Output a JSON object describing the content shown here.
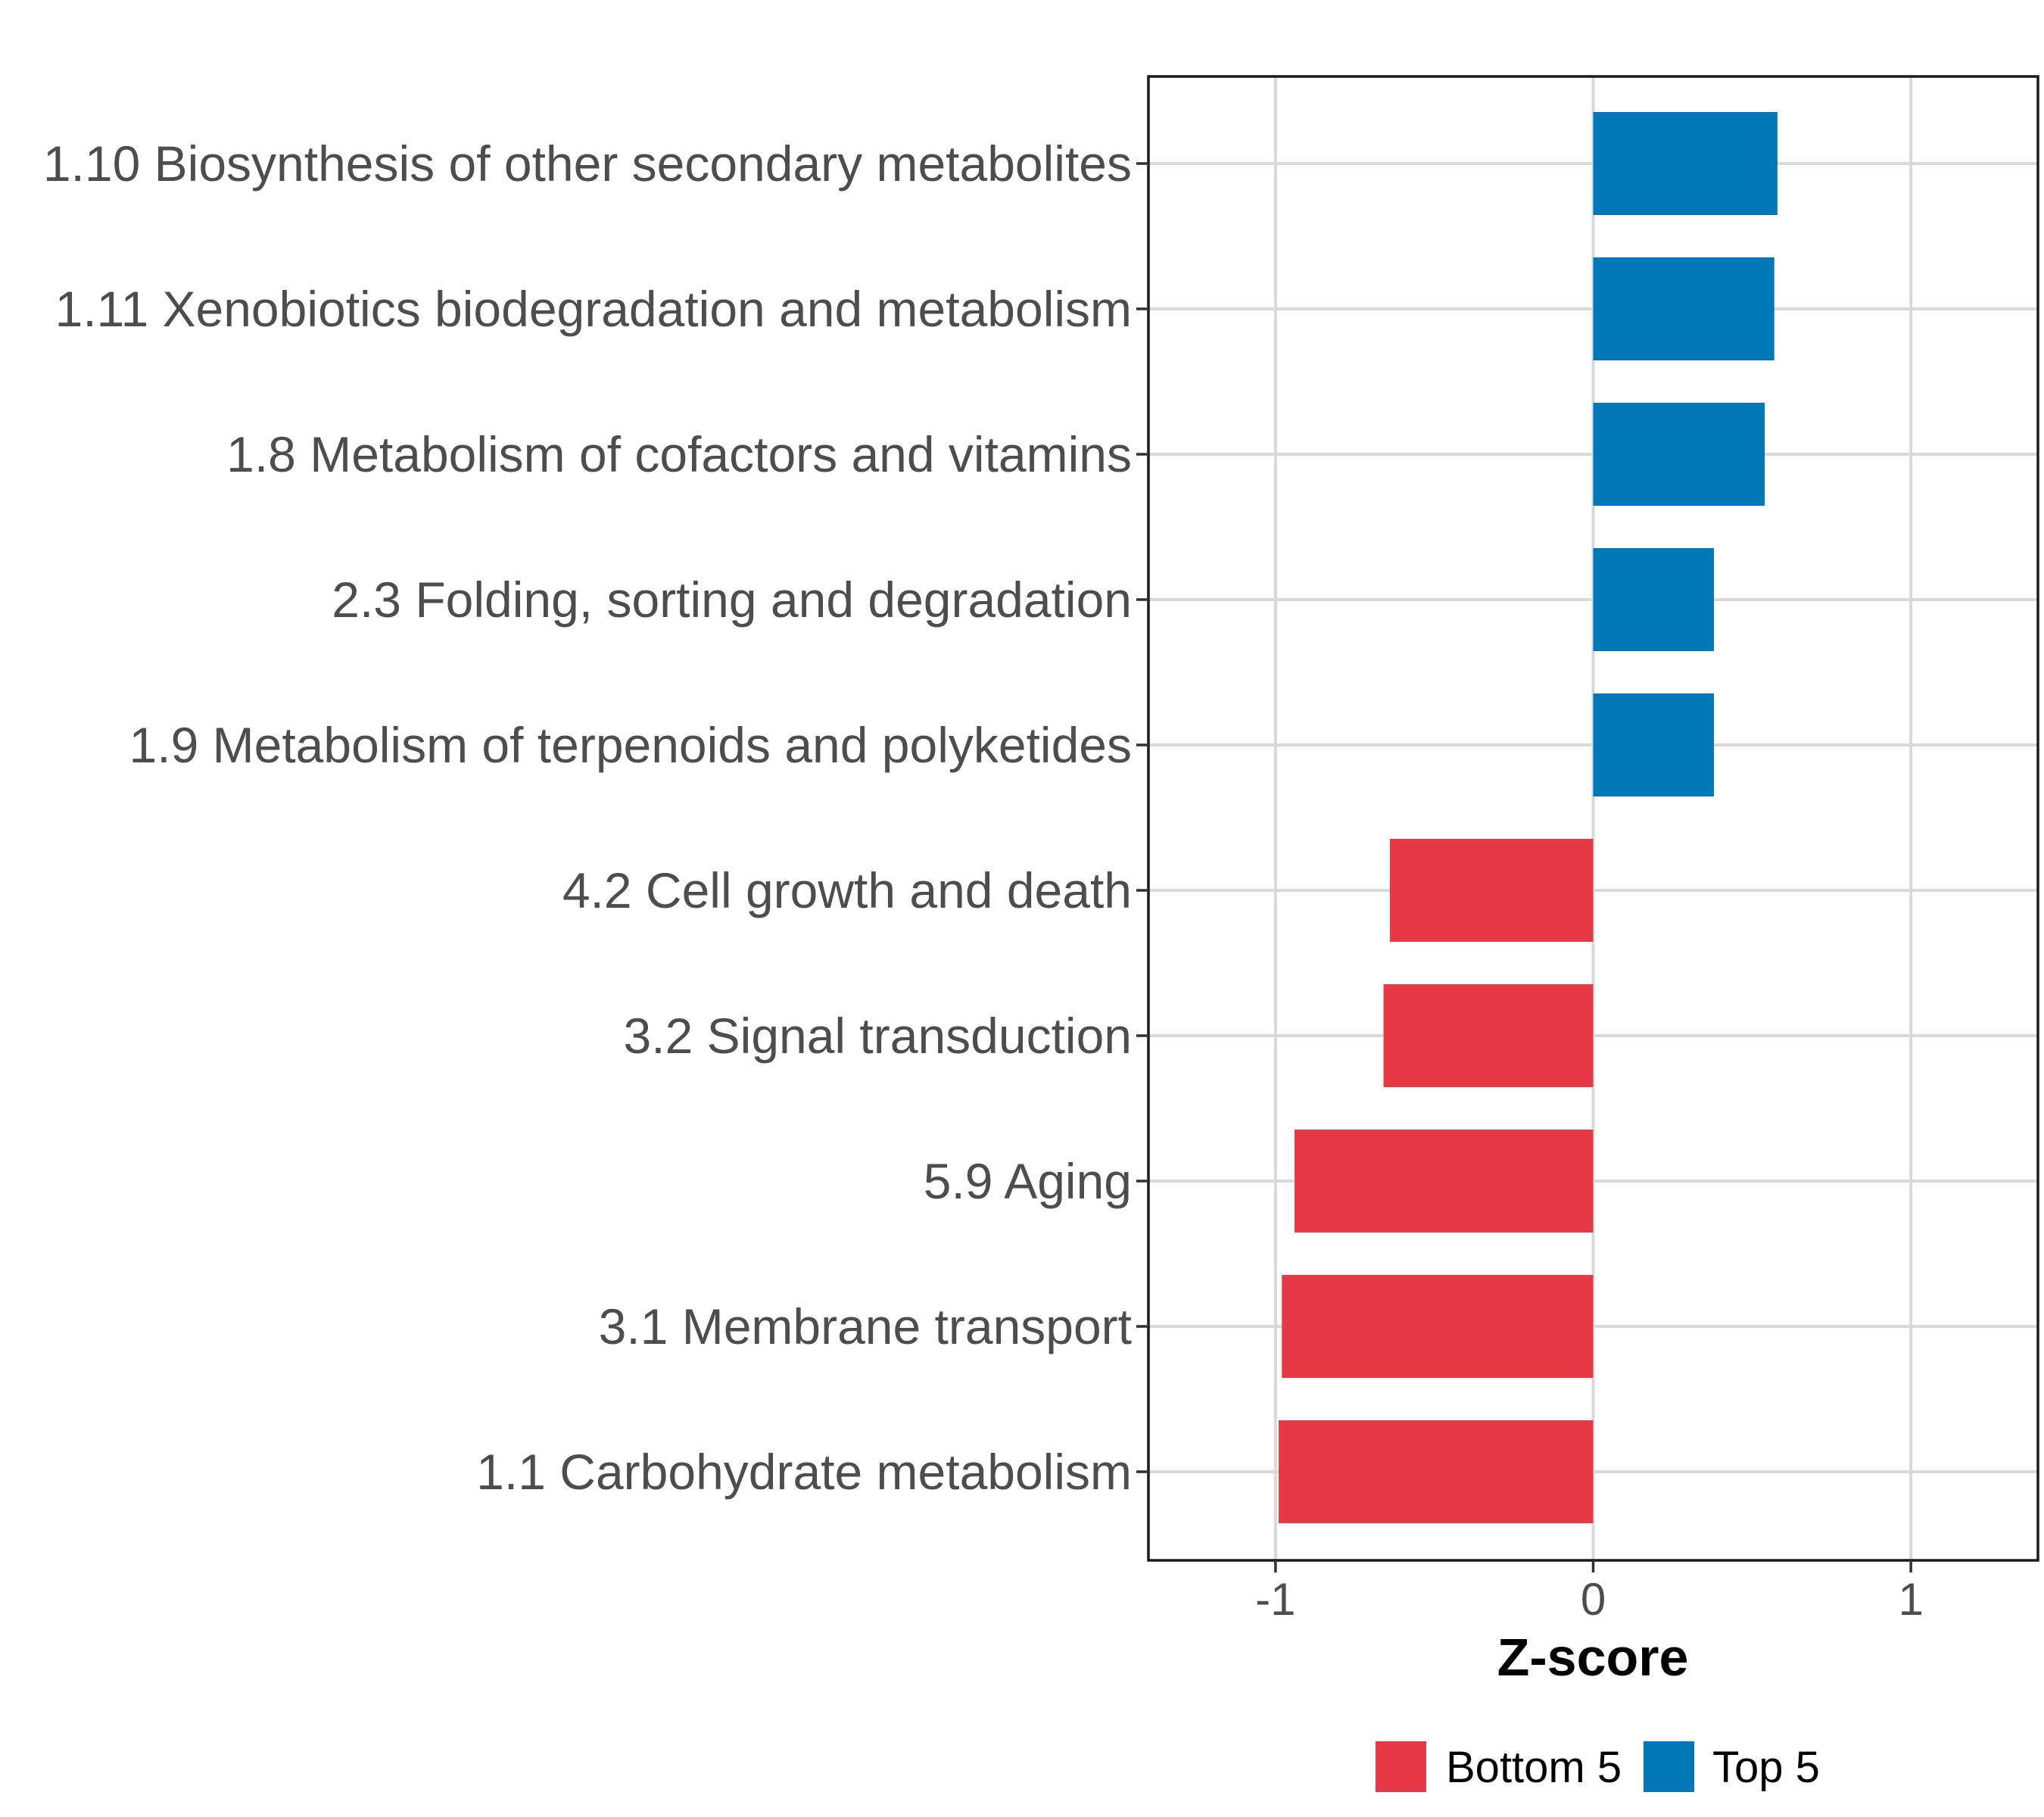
{
  "chart_data": {
    "type": "bar",
    "orientation": "horizontal",
    "categories": [
      "1.10 Biosynthesis of other secondary metabolites",
      "1.11 Xenobiotics biodegradation and metabolism",
      "1.8 Metabolism of cofactors and vitamins",
      "2.3 Folding, sorting and degradation",
      "1.9 Metabolism of terpenoids and polyketides",
      "4.2 Cell growth and death",
      "3.2 Signal transduction",
      "5.9 Aging",
      "3.1 Membrane transport",
      "1.1 Carbohydrate metabolism"
    ],
    "values": [
      0.58,
      0.57,
      0.54,
      0.38,
      0.38,
      -0.64,
      -0.66,
      -0.94,
      -0.98,
      -0.99
    ],
    "groups": [
      "Top 5",
      "Top 5",
      "Top 5",
      "Top 5",
      "Top 5",
      "Bottom 5",
      "Bottom 5",
      "Bottom 5",
      "Bottom 5",
      "Bottom 5"
    ],
    "xlabel": "Z-score",
    "ylabel": "",
    "xlim": [
      -1.4,
      1.4
    ],
    "xticks": [
      -1,
      0,
      1
    ],
    "xtick_labels": [
      "-1",
      "0",
      "1"
    ],
    "grid": true,
    "legend": {
      "position": "bottom",
      "entries": [
        {
          "label": "Bottom 5",
          "color": "#E63946"
        },
        {
          "label": "Top 5",
          "color": "#0077B6"
        }
      ]
    },
    "colors": {
      "Bottom 5": "#E63946",
      "Top 5": "#0077B6"
    }
  }
}
